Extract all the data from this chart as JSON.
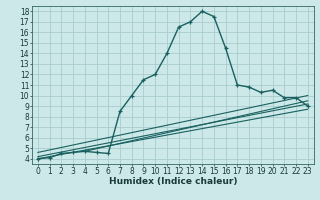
{
  "title": "",
  "xlabel": "Humidex (Indice chaleur)",
  "background_color": "#cce8e8",
  "grid_color": "#aacccc",
  "line_color": "#1a6060",
  "xlim": [
    -0.5,
    23.5
  ],
  "ylim": [
    3.5,
    18.5
  ],
  "xticks": [
    0,
    1,
    2,
    3,
    4,
    5,
    6,
    7,
    8,
    9,
    10,
    11,
    12,
    13,
    14,
    15,
    16,
    17,
    18,
    19,
    20,
    21,
    22,
    23
  ],
  "yticks": [
    4,
    5,
    6,
    7,
    8,
    9,
    10,
    11,
    12,
    13,
    14,
    15,
    16,
    17,
    18
  ],
  "main_x": [
    0,
    1,
    2,
    3,
    4,
    5,
    6,
    7,
    8,
    9,
    10,
    11,
    12,
    13,
    14,
    15,
    16,
    17,
    18,
    19,
    20,
    21,
    22,
    23
  ],
  "main_y": [
    4.0,
    4.1,
    4.5,
    4.6,
    4.7,
    4.6,
    4.5,
    8.5,
    10.0,
    11.5,
    12.0,
    14.0,
    16.5,
    17.0,
    18.0,
    17.5,
    14.5,
    11.0,
    10.8,
    10.3,
    10.5,
    9.8,
    9.8,
    9.0
  ],
  "line2_x": [
    0,
    23
  ],
  "line2_y": [
    4.2,
    9.2
  ],
  "line3_x": [
    0,
    23
  ],
  "line3_y": [
    4.0,
    8.7
  ],
  "line4_x": [
    0,
    23
  ],
  "line4_y": [
    4.6,
    10.0
  ],
  "line5_x": [
    4,
    23
  ],
  "line5_y": [
    4.7,
    9.5
  ],
  "tick_fontsize": 5.5,
  "xlabel_fontsize": 6.5
}
